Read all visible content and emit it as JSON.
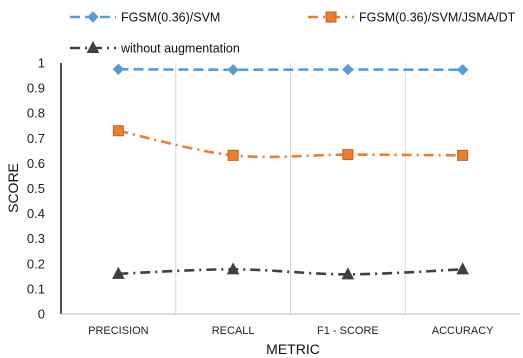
{
  "chart_data": {
    "type": "line",
    "title": "",
    "xlabel": "METRIC",
    "ylabel": "SCORE",
    "categories": [
      "PRECISION",
      "RECALL",
      "F1 - SCORE",
      "ACCURACY"
    ],
    "ylim": [
      0,
      1
    ],
    "yticks": [
      "0",
      "0.1",
      "0.2",
      "0.3",
      "0.4",
      "0.5",
      "0.6",
      "0.7",
      "0.8",
      "0.9",
      "1"
    ],
    "grid": "vertical",
    "legend_position": "top",
    "series": [
      {
        "name": "FGSM(0.36)/SVM",
        "values": [
          0.975,
          0.973,
          0.974,
          0.973
        ],
        "color": "#5B9BD5",
        "marker": "diamond",
        "dash": "dashed"
      },
      {
        "name": "FGSM(0.36)/SVM/JSMA/DT",
        "values": [
          0.73,
          0.632,
          0.635,
          0.632
        ],
        "color": "#ED7D31",
        "marker": "square",
        "dash": "dashdot"
      },
      {
        "name": "without augmentation",
        "values": [
          0.16,
          0.178,
          0.158,
          0.178
        ],
        "color": "#404040",
        "marker": "triangle",
        "dash": "dashdot"
      }
    ]
  }
}
